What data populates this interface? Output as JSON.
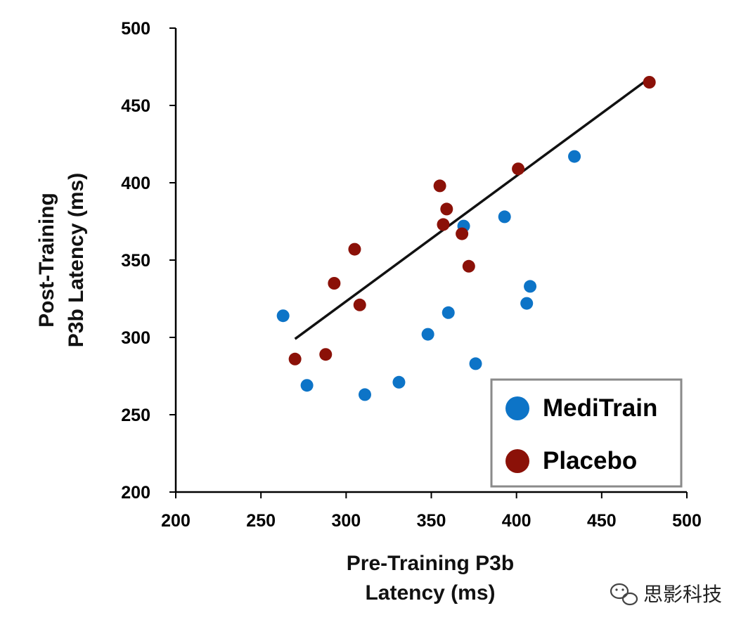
{
  "chart_data": {
    "type": "scatter",
    "xlabel": [
      "Pre-Training P3b",
      "Latency (ms)"
    ],
    "ylabel": [
      "Post-Training",
      "P3b Latency (ms)"
    ],
    "xlim": [
      200,
      500
    ],
    "ylim": [
      200,
      500
    ],
    "xticks": [
      200,
      250,
      300,
      350,
      400,
      450,
      500
    ],
    "yticks": [
      200,
      250,
      300,
      350,
      400,
      450,
      500
    ],
    "grid": false,
    "legend_position": "bottom-right",
    "series": [
      {
        "name": "MediTrain",
        "color": "#0d74c7",
        "points": [
          {
            "x": 263,
            "y": 314
          },
          {
            "x": 277,
            "y": 269
          },
          {
            "x": 311,
            "y": 263
          },
          {
            "x": 331,
            "y": 271
          },
          {
            "x": 348,
            "y": 302
          },
          {
            "x": 360,
            "y": 316
          },
          {
            "x": 369,
            "y": 372
          },
          {
            "x": 376,
            "y": 283
          },
          {
            "x": 393,
            "y": 378
          },
          {
            "x": 406,
            "y": 322
          },
          {
            "x": 408,
            "y": 333
          },
          {
            "x": 434,
            "y": 417
          }
        ]
      },
      {
        "name": "Placebo",
        "color": "#8b1108",
        "points": [
          {
            "x": 270,
            "y": 286
          },
          {
            "x": 288,
            "y": 289
          },
          {
            "x": 293,
            "y": 335
          },
          {
            "x": 305,
            "y": 357
          },
          {
            "x": 308,
            "y": 321
          },
          {
            "x": 355,
            "y": 398
          },
          {
            "x": 357,
            "y": 373
          },
          {
            "x": 359,
            "y": 383
          },
          {
            "x": 368,
            "y": 367
          },
          {
            "x": 372,
            "y": 346
          },
          {
            "x": 401,
            "y": 409
          },
          {
            "x": 478,
            "y": 465
          }
        ]
      }
    ],
    "trendline": {
      "color": "#111111",
      "x": [
        270,
        476
      ],
      "y": [
        299,
        466
      ]
    }
  },
  "watermark": {
    "text": "思影科技",
    "icon": "wechat-logo-icon"
  }
}
